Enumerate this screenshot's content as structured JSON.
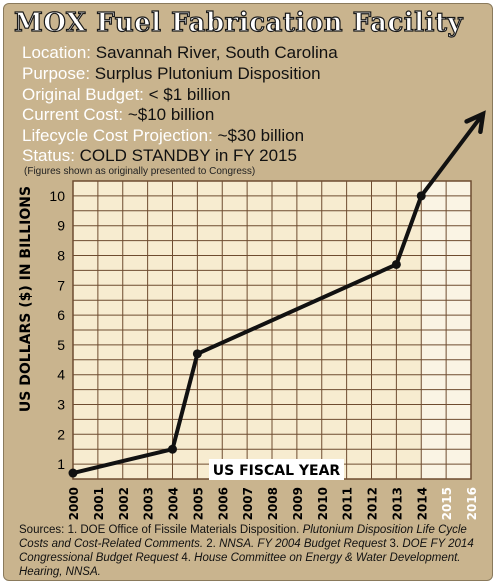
{
  "title": "MOX Fuel Fabrication Facility",
  "info": [
    {
      "label": "Location:",
      "value": "Savannah River, South Carolina"
    },
    {
      "label": "Purpose:",
      "value": "Surplus Plutonium Disposition"
    },
    {
      "label": "Original Budget:",
      "value": "< $1 billion"
    },
    {
      "label": "Current Cost:",
      "value": "~$10 billion"
    },
    {
      "label": "Lifecycle Cost Projection:",
      "value": "~$30 billion"
    },
    {
      "label": "Status:",
      "value": "COLD STANDBY in FY 2015"
    }
  ],
  "note": "(Figures shown as originally presented to Congress)",
  "sources": {
    "p1": "Sources: 1. DOE Office of Fissile Materials Disposition. ",
    "i1": "Plutonium Disposition Life Cycle Costs and Cost-Related Comments.",
    "p2": " 2. ",
    "i2": "NNSA. FY 2004 Budget Request",
    "p3": " 3. ",
    "i3": "DOE FY 2014 Congressional Budget Request",
    "p4": " 4. ",
    "i4": "House Committee on Energy & Water Development. Hearing, NNSA."
  },
  "colors": {
    "background": "#c9b48e",
    "plot_area": "#f7ecd0",
    "projection_area": "#faf4e4",
    "grid": "#6e4c30",
    "line": "#111111",
    "header_text": "#ffffff"
  },
  "chart_data": {
    "type": "line",
    "xlabel": "US FISCAL YEAR",
    "ylabel": "US DOLLARS ($) IN BILLIONS",
    "categories": [
      "2000",
      "2001",
      "2002",
      "2003",
      "2004",
      "2005",
      "2006",
      "2007",
      "2008",
      "2009",
      "2010",
      "2011",
      "2012",
      "2013",
      "2014",
      "2015",
      "2016"
    ],
    "x": [
      2000,
      2004,
      2005,
      2013,
      2014
    ],
    "y": [
      0.7,
      1.5,
      4.7,
      7.7,
      10.0
    ],
    "ylim": [
      0.5,
      10.5
    ],
    "xlim": [
      2000,
      2016
    ],
    "yticks": [
      "1",
      "2",
      "3",
      "4",
      "5",
      "6",
      "7",
      "8",
      "9",
      "10"
    ],
    "projection_start": 2014,
    "arrow_continues": true,
    "grid": true
  }
}
